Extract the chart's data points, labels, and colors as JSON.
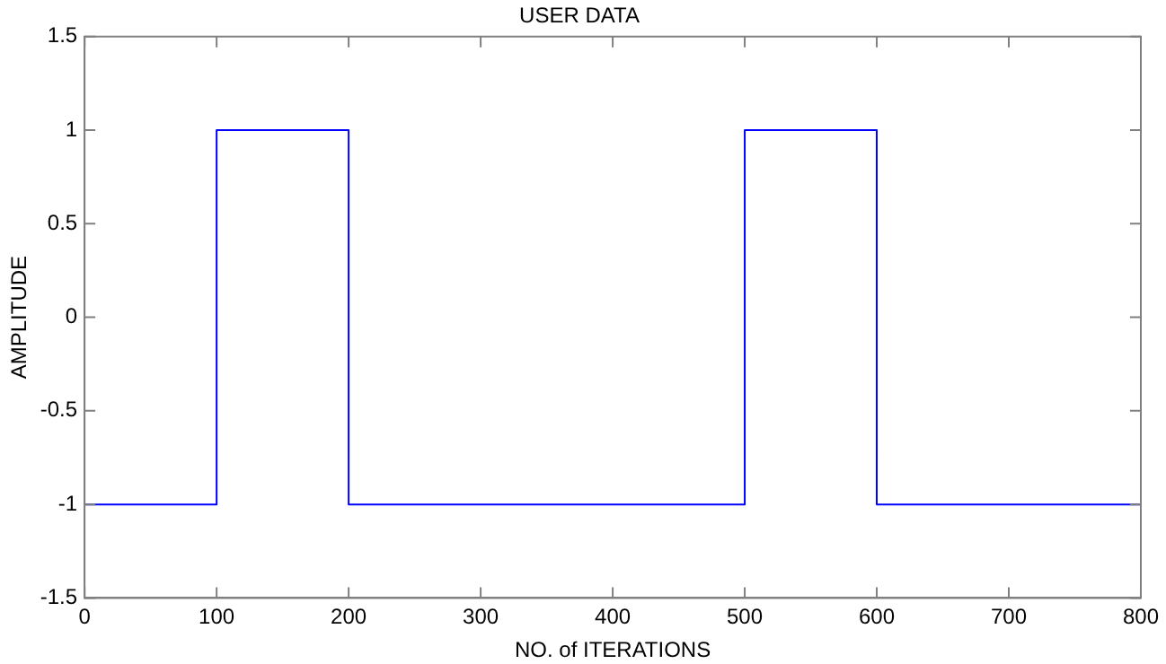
{
  "chart_data": {
    "type": "line",
    "title": "USER DATA",
    "xlabel": "NO. of ITERATIONS",
    "ylabel": "AMPLITUDE",
    "x": [
      0,
      100,
      100,
      200,
      200,
      500,
      500,
      600,
      600,
      800
    ],
    "series": [
      {
        "color": "#0000ff",
        "values": [
          -1,
          -1,
          1,
          1,
          -1,
          -1,
          1,
          1,
          -1,
          -1
        ]
      }
    ],
    "xlim": [
      0,
      800
    ],
    "xticks": [
      0,
      100,
      200,
      300,
      400,
      500,
      600,
      700,
      800
    ],
    "ylim": [
      -1.5,
      1.5
    ],
    "yticks": [
      -1.5,
      -1,
      -0.5,
      0,
      0.5,
      1,
      1.5
    ],
    "grid": false,
    "legend": false,
    "marker": "none",
    "line_style": "solid"
  }
}
